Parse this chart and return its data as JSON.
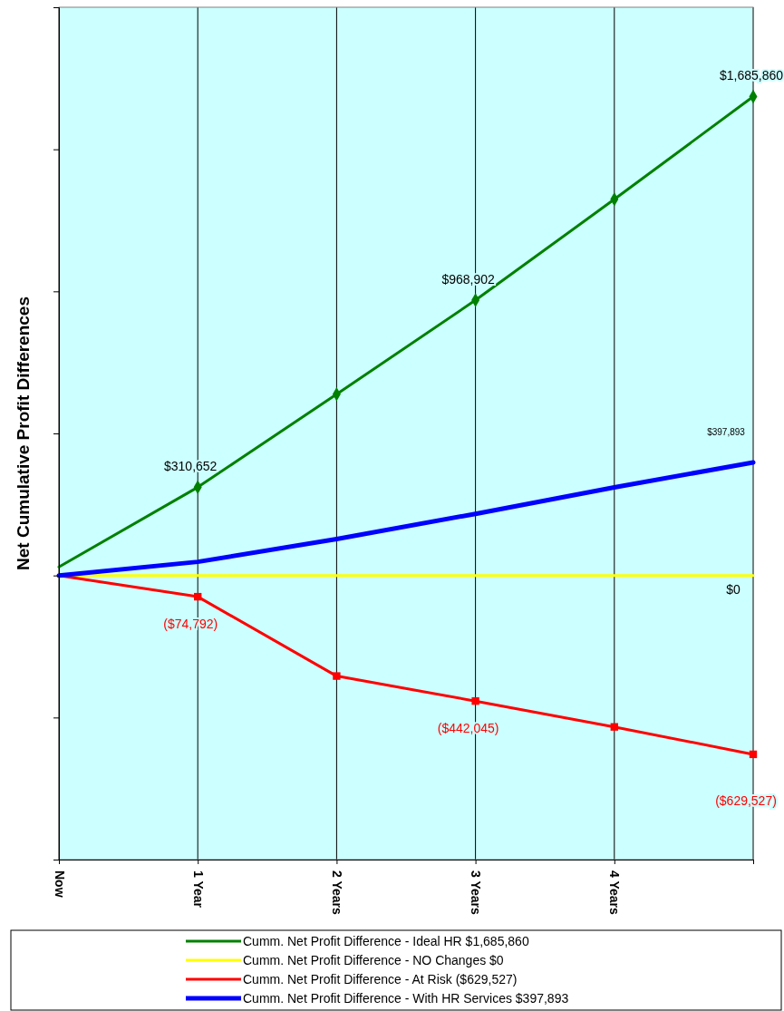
{
  "chart_data": {
    "type": "line",
    "ylabel": "Net Cumulative Profit Differences",
    "categories": [
      "Now",
      "1 Year",
      "2 Years",
      "3 Years",
      "4 Years",
      null
    ],
    "ylim": [
      -1000000,
      2000000
    ],
    "yticks": [
      {
        "value": -1000000,
        "label": null
      },
      {
        "value": -500000,
        "label": null
      },
      {
        "value": 0,
        "label": null
      },
      {
        "value": 500000,
        "label": null
      },
      {
        "value": 1000000,
        "label": null
      },
      {
        "value": 1500000,
        "label": null
      },
      {
        "value": 2000000,
        "label": null
      }
    ],
    "tick_labels": "x",
    "grid": "x",
    "legend": "bottom",
    "series": [
      {
        "name": "Cumm. Net Profit Difference - Ideal HR $1,685,860",
        "color": "#008000",
        "marker": "diamond",
        "values": [
          30000,
          310652,
          638000,
          968902,
          1324000,
          1685860
        ],
        "value_labels": [
          null,
          "$310,652",
          null,
          "$968,902",
          null,
          "$1,685,860"
        ]
      },
      {
        "name": "Cumm. Net Profit Difference - NO Changes $0",
        "color": "#ffff00",
        "marker": "none",
        "values": [
          0,
          0,
          0,
          0,
          0,
          0
        ],
        "value_labels": [
          null,
          null,
          null,
          null,
          null,
          "$0"
        ]
      },
      {
        "name": "Cumm. Net Profit Difference - At Risk ($629,527)",
        "color": "#ff0000",
        "marker": "square",
        "values": [
          0,
          -74792,
          -354000,
          -442045,
          -533000,
          -629527
        ],
        "value_labels": [
          null,
          "($74,792)",
          null,
          "($442,045)",
          null,
          "($629,527)"
        ]
      },
      {
        "name": "Cumm. Net Profit Difference - With HR Services $397,893",
        "color": "#0000ff",
        "marker": "none",
        "values": [
          0,
          48000,
          128000,
          217000,
          310000,
          397893
        ],
        "value_labels": [
          null,
          null,
          null,
          null,
          null,
          "$397,893"
        ]
      }
    ]
  }
}
